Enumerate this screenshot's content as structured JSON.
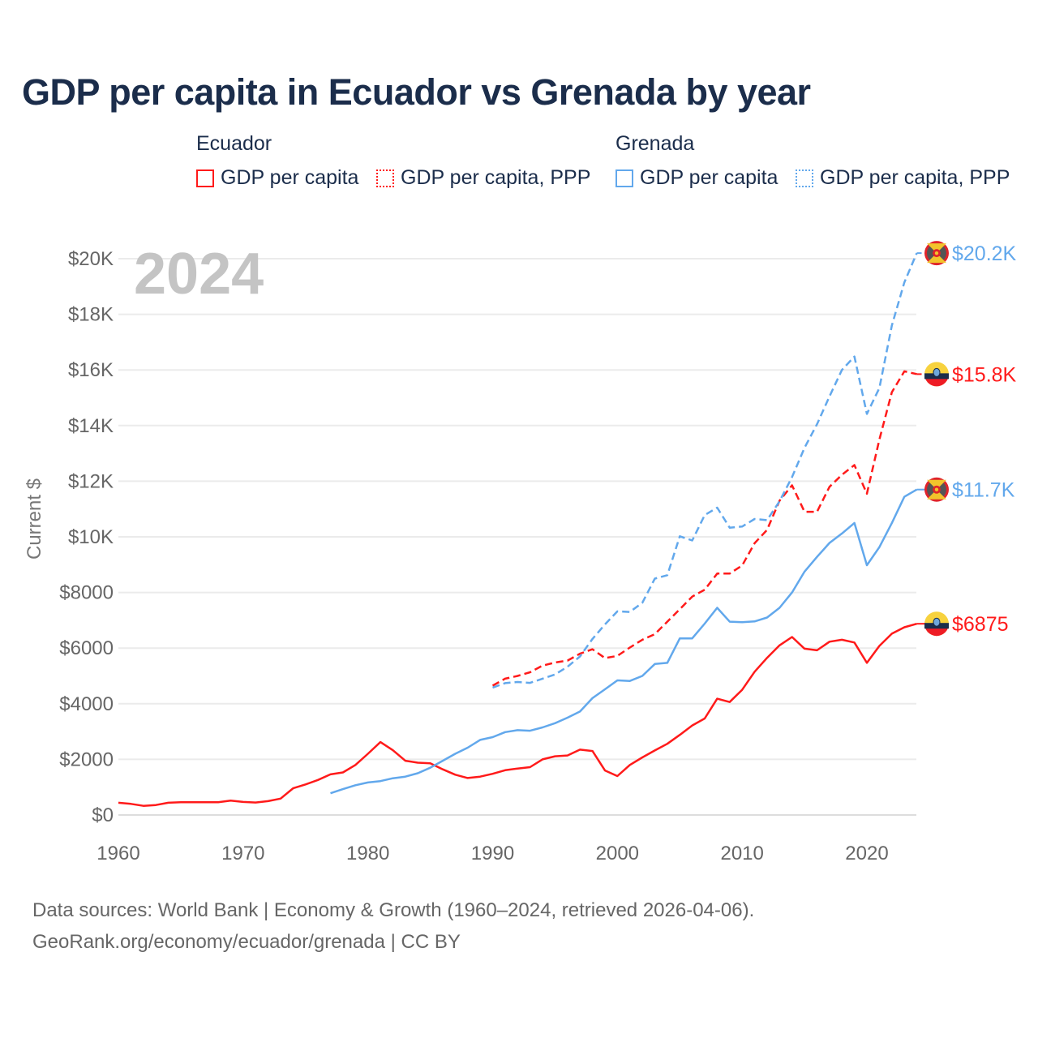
{
  "chart_data": {
    "type": "line",
    "title": "GDP per capita in Ecuador vs Grenada by year",
    "year_label": "2024",
    "ylabel": "Current $",
    "xlabel": "",
    "xlim": [
      1960,
      2024
    ],
    "ylim": [
      0,
      20500
    ],
    "x_ticks": [
      1960,
      1970,
      1980,
      1990,
      2000,
      2010,
      2020
    ],
    "y_ticks": [
      0,
      2000,
      4000,
      6000,
      8000,
      10000,
      12000,
      14000,
      16000,
      18000,
      20000
    ],
    "y_tick_labels": [
      "$0",
      "$2000",
      "$4000",
      "$6000",
      "$8000",
      "$10K",
      "$12K",
      "$14K",
      "$16K",
      "$18K",
      "$20K"
    ],
    "grid": true,
    "legend_groups": [
      {
        "country": "Ecuador",
        "items": [
          "GDP per capita",
          "GDP per capita, PPP"
        ]
      },
      {
        "country": "Grenada",
        "items": [
          "GDP per capita",
          "GDP per capita, PPP"
        ]
      }
    ],
    "colors": {
      "Ecuador": "#ff1a1a",
      "Grenada": "#62a8ec"
    },
    "series": [
      {
        "name": "Ecuador GDP per capita",
        "country": "Ecuador",
        "dashed": false,
        "start": 1960,
        "end_label": "$6875",
        "values": [
          440,
          400,
          330,
          360,
          440,
          460,
          460,
          460,
          460,
          520,
          470,
          450,
          500,
          590,
          960,
          1100,
          1260,
          1460,
          1530,
          1800,
          2200,
          2620,
          2330,
          1950,
          1880,
          1860,
          1640,
          1450,
          1330,
          1380,
          1480,
          1610,
          1670,
          1720,
          2000,
          2110,
          2140,
          2350,
          2300,
          1600,
          1400,
          1800,
          2070,
          2320,
          2560,
          2880,
          3220,
          3470,
          4180,
          4060,
          4500,
          5150,
          5650,
          6100,
          6400,
          5980,
          5920,
          6230,
          6300,
          6200,
          5470,
          6080,
          6520,
          6750,
          6875
        ]
      },
      {
        "name": "Ecuador GDP per capita, PPP",
        "country": "Ecuador",
        "dashed": true,
        "start": 1990,
        "end_label": "$15.8K",
        "values": [
          4650,
          4900,
          5000,
          5130,
          5370,
          5480,
          5550,
          5800,
          5960,
          5640,
          5720,
          6020,
          6300,
          6500,
          6950,
          7400,
          7850,
          8100,
          8680,
          8680,
          8970,
          9770,
          10250,
          11300,
          11850,
          10900,
          10900,
          11800,
          12230,
          12580,
          11550,
          13500,
          15200,
          15950,
          15850
        ]
      },
      {
        "name": "Grenada GDP per capita",
        "country": "Grenada",
        "dashed": false,
        "start": 1977,
        "end_label": "$11.7K",
        "values": [
          780,
          930,
          1070,
          1170,
          1220,
          1320,
          1380,
          1500,
          1700,
          1950,
          2200,
          2420,
          2700,
          2800,
          2980,
          3050,
          3030,
          3150,
          3300,
          3500,
          3720,
          4200,
          4520,
          4840,
          4820,
          5000,
          5430,
          5470,
          6350,
          6350,
          6880,
          7450,
          6950,
          6930,
          6960,
          7100,
          7450,
          8000,
          8750,
          9280,
          9780,
          10120,
          10500,
          8980,
          9630,
          10500,
          11440,
          11700
        ]
      },
      {
        "name": "Grenada GDP per capita, PPP",
        "country": "Grenada",
        "dashed": true,
        "start": 1990,
        "end_label": "$20.2K",
        "values": [
          4580,
          4740,
          4780,
          4750,
          4900,
          5050,
          5330,
          5700,
          6330,
          6850,
          7320,
          7300,
          7630,
          8500,
          8620,
          10020,
          9870,
          10780,
          11050,
          10330,
          10370,
          10640,
          10600,
          11280,
          12150,
          13200,
          14050,
          15050,
          16000,
          16480,
          14420,
          15350,
          17600,
          19150,
          20200
        ]
      }
    ]
  },
  "legend": {
    "ecuador": "Ecuador",
    "grenada": "Grenada",
    "gdp": "GDP per capita",
    "ppp": "GDP per capita, PPP"
  },
  "footer": {
    "line1": "Data sources: World Bank | Economy & Growth (1960–2024, retrieved 2026-04-06).",
    "line2": "GeoRank.org/economy/ecuador/grenada | CC BY"
  }
}
